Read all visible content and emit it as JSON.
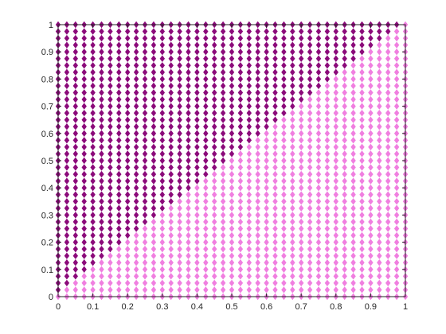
{
  "chart_data": {
    "type": "scatter",
    "title": "",
    "xlabel": "",
    "ylabel": "",
    "xlim": [
      0,
      1
    ],
    "ylim": [
      0,
      1
    ],
    "grid": false,
    "legend": "none",
    "marker": "diamond",
    "x_ticks": [
      0,
      0.1,
      0.2,
      0.3,
      0.4,
      0.5,
      0.6,
      0.7,
      0.8,
      0.9,
      1
    ],
    "x_tick_labels": [
      "0",
      "0.1",
      "0.2",
      "0.3",
      "0.4",
      "0.5",
      "0.6",
      "0.7",
      "0.8",
      "0.9",
      "1"
    ],
    "y_ticks": [
      0,
      0.1,
      0.2,
      0.3,
      0.4,
      0.5,
      0.6,
      0.7,
      0.8,
      0.9,
      1
    ],
    "y_tick_labels": [
      "0",
      "0.1",
      "0.2",
      "0.3",
      "0.4",
      "0.5",
      "0.6",
      "0.7",
      "0.8",
      "0.9",
      "1"
    ],
    "series": [
      {
        "color": "#8b0a7a",
        "description_rule": "points on the grid with y > x",
        "grid_step": 0.025,
        "condition": "y_greater_than_x"
      },
      {
        "color": "#f07fe0",
        "description_rule": "points on the grid with y <= x",
        "grid_step": 0.025,
        "condition": "y_less_or_equal_x"
      }
    ]
  }
}
